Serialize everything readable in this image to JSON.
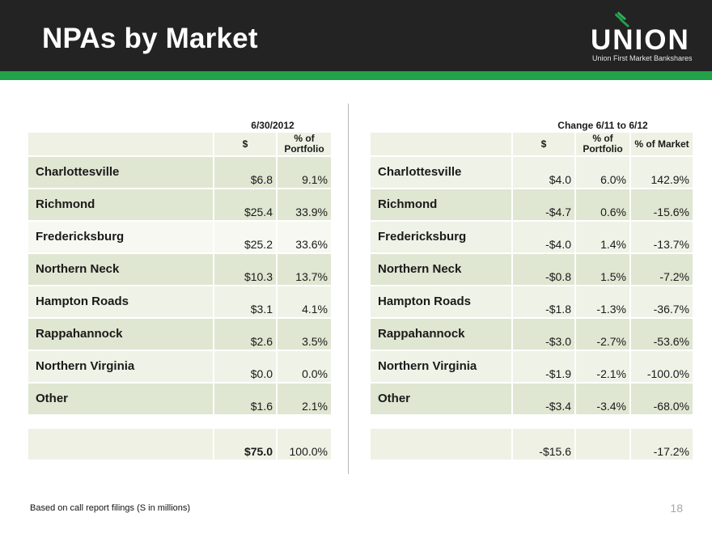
{
  "title": "NPAs by Market",
  "logo": {
    "wordmark": "UNION",
    "subtitle": "Union First Market Bankshares"
  },
  "colors": {
    "header": "#232323",
    "accent_green": "#22a24a"
  },
  "left_table": {
    "group_header": "6/30/2012",
    "columns": [
      "$",
      "% of Portfolio"
    ],
    "rows": [
      {
        "market": "Charlottesville",
        "dollars": "$6.8",
        "pct_portfolio": "9.1%"
      },
      {
        "market": "Richmond",
        "dollars": "$25.4",
        "pct_portfolio": "33.9%"
      },
      {
        "market": "Fredericksburg",
        "dollars": "$25.2",
        "pct_portfolio": "33.6%"
      },
      {
        "market": "Northern Neck",
        "dollars": "$10.3",
        "pct_portfolio": "13.7%"
      },
      {
        "market": "Hampton Roads",
        "dollars": "$3.1",
        "pct_portfolio": "4.1%"
      },
      {
        "market": "Rappahannock",
        "dollars": "$2.6",
        "pct_portfolio": "3.5%"
      },
      {
        "market": "Northern Virginia",
        "dollars": "$0.0",
        "pct_portfolio": "0.0%"
      },
      {
        "market": "Other",
        "dollars": "$1.6",
        "pct_portfolio": "2.1%"
      }
    ],
    "total": {
      "dollars": "$75.0",
      "pct_portfolio": "100.0%"
    }
  },
  "right_table": {
    "group_header": "Change 6/11 to 6/12",
    "columns": [
      "$",
      "% of Portfolio",
      "% of Market"
    ],
    "rows": [
      {
        "market": "Charlottesville",
        "dollars": "$4.0",
        "pct_portfolio": "6.0%",
        "pct_market": "142.9%"
      },
      {
        "market": "Richmond",
        "dollars": "-$4.7",
        "pct_portfolio": "0.6%",
        "pct_market": "-15.6%"
      },
      {
        "market": "Fredericksburg",
        "dollars": "-$4.0",
        "pct_portfolio": "1.4%",
        "pct_market": "-13.7%"
      },
      {
        "market": "Northern Neck",
        "dollars": "-$0.8",
        "pct_portfolio": "1.5%",
        "pct_market": "-7.2%"
      },
      {
        "market": "Hampton Roads",
        "dollars": "-$1.8",
        "pct_portfolio": "-1.3%",
        "pct_market": "-36.7%"
      },
      {
        "market": "Rappahannock",
        "dollars": "-$3.0",
        "pct_portfolio": "-2.7%",
        "pct_market": "-53.6%"
      },
      {
        "market": "Northern Virginia",
        "dollars": "-$1.9",
        "pct_portfolio": "-2.1%",
        "pct_market": "-100.0%"
      },
      {
        "market": "Other",
        "dollars": "-$3.4",
        "pct_portfolio": "-3.4%",
        "pct_market": "-68.0%"
      }
    ],
    "total": {
      "dollars": "-$15.6",
      "pct_portfolio": "",
      "pct_market": "-17.2%"
    }
  },
  "footnote": "Based on call report filings (S in millions)",
  "page_number": "18"
}
